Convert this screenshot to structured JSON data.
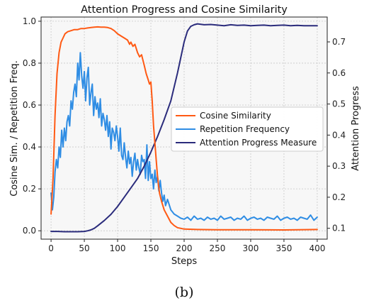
{
  "caption": "(b)",
  "chart_data": {
    "type": "line",
    "title": "Attention Progress and Cosine Similarity",
    "xlabel": "Steps",
    "ylabel_left": "Cosine Sim. / Repetition Freq.",
    "ylabel_right": "Attention Progress",
    "xlim": [
      -15,
      415
    ],
    "ylim_left": [
      -0.04,
      1.02
    ],
    "ylim_right": [
      0.065,
      0.78
    ],
    "xticks": [
      0,
      50,
      100,
      150,
      200,
      250,
      300,
      350,
      400
    ],
    "yticks_left": [
      0.0,
      0.2,
      0.4,
      0.6,
      0.8,
      1.0
    ],
    "yticks_right": [
      0.1,
      0.2,
      0.3,
      0.4,
      0.5,
      0.6,
      0.7
    ],
    "grid": true,
    "legend_position": "center-right",
    "series": [
      {
        "name": "Cosine Similarity",
        "axis": "left",
        "color": "#ff5a14",
        "x": [
          0,
          3,
          6,
          9,
          12,
          15,
          18,
          21,
          25,
          30,
          35,
          40,
          45,
          50,
          55,
          60,
          65,
          70,
          75,
          80,
          85,
          90,
          95,
          100,
          105,
          110,
          115,
          118,
          120,
          123,
          126,
          130,
          133,
          136,
          140,
          143,
          146,
          148,
          150,
          152,
          154,
          156,
          158,
          160,
          163,
          166,
          170,
          175,
          180,
          185,
          190,
          200,
          220,
          250,
          300,
          350,
          400
        ],
        "y": [
          0.08,
          0.25,
          0.55,
          0.75,
          0.85,
          0.9,
          0.92,
          0.94,
          0.95,
          0.955,
          0.96,
          0.96,
          0.965,
          0.965,
          0.968,
          0.97,
          0.972,
          0.973,
          0.972,
          0.972,
          0.97,
          0.965,
          0.955,
          0.94,
          0.93,
          0.92,
          0.91,
          0.89,
          0.9,
          0.88,
          0.89,
          0.85,
          0.83,
          0.84,
          0.79,
          0.75,
          0.72,
          0.7,
          0.71,
          0.62,
          0.5,
          0.42,
          0.34,
          0.26,
          0.18,
          0.14,
          0.1,
          0.07,
          0.04,
          0.025,
          0.015,
          0.008,
          0.006,
          0.005,
          0.005,
          0.004,
          0.006
        ]
      },
      {
        "name": "Repetition Frequency",
        "axis": "left",
        "color": "#2f8de4",
        "x": [
          0,
          2,
          4,
          6,
          8,
          10,
          12,
          14,
          16,
          18,
          20,
          22,
          24,
          26,
          28,
          30,
          32,
          34,
          36,
          38,
          40,
          42,
          44,
          46,
          48,
          50,
          52,
          54,
          56,
          58,
          60,
          62,
          64,
          66,
          68,
          70,
          72,
          74,
          76,
          78,
          80,
          82,
          84,
          86,
          88,
          90,
          92,
          94,
          96,
          98,
          100,
          102,
          104,
          106,
          108,
          110,
          112,
          114,
          116,
          118,
          120,
          122,
          124,
          126,
          128,
          130,
          132,
          134,
          136,
          138,
          140,
          142,
          144,
          146,
          148,
          150,
          152,
          154,
          156,
          158,
          160,
          162,
          164,
          166,
          168,
          170,
          172,
          175,
          180,
          185,
          190,
          195,
          200,
          205,
          210,
          215,
          220,
          225,
          230,
          235,
          240,
          245,
          250,
          255,
          260,
          265,
          270,
          275,
          280,
          285,
          290,
          295,
          300,
          305,
          310,
          315,
          320,
          325,
          330,
          335,
          340,
          345,
          350,
          355,
          360,
          365,
          370,
          375,
          380,
          385,
          390,
          395,
          400
        ],
        "y": [
          0.18,
          0.1,
          0.16,
          0.28,
          0.34,
          0.3,
          0.4,
          0.35,
          0.48,
          0.4,
          0.49,
          0.43,
          0.52,
          0.55,
          0.5,
          0.62,
          0.58,
          0.66,
          0.7,
          0.64,
          0.8,
          0.72,
          0.85,
          0.74,
          0.68,
          0.76,
          0.62,
          0.73,
          0.78,
          0.6,
          0.66,
          0.7,
          0.55,
          0.64,
          0.58,
          0.61,
          0.54,
          0.63,
          0.5,
          0.56,
          0.53,
          0.48,
          0.55,
          0.45,
          0.52,
          0.39,
          0.49,
          0.47,
          0.43,
          0.5,
          0.45,
          0.38,
          0.49,
          0.36,
          0.34,
          0.42,
          0.35,
          0.3,
          0.38,
          0.32,
          0.35,
          0.26,
          0.33,
          0.37,
          0.29,
          0.34,
          0.3,
          0.27,
          0.36,
          0.33,
          0.34,
          0.25,
          0.41,
          0.24,
          0.33,
          0.25,
          0.27,
          0.2,
          0.29,
          0.23,
          0.26,
          0.19,
          0.24,
          0.18,
          0.14,
          0.17,
          0.12,
          0.15,
          0.1,
          0.08,
          0.07,
          0.06,
          0.055,
          0.065,
          0.05,
          0.07,
          0.055,
          0.06,
          0.05,
          0.065,
          0.055,
          0.06,
          0.05,
          0.07,
          0.055,
          0.06,
          0.065,
          0.05,
          0.06,
          0.055,
          0.07,
          0.05,
          0.06,
          0.065,
          0.055,
          0.06,
          0.05,
          0.065,
          0.06,
          0.055,
          0.07,
          0.05,
          0.06,
          0.065,
          0.055,
          0.06,
          0.05,
          0.065,
          0.06,
          0.055,
          0.075,
          0.05,
          0.065
        ]
      },
      {
        "name": "Attention Progress Measure",
        "axis": "right",
        "color": "#2b2c7c",
        "x": [
          0,
          10,
          20,
          30,
          40,
          50,
          55,
          60,
          65,
          70,
          80,
          90,
          100,
          110,
          120,
          130,
          140,
          150,
          160,
          170,
          180,
          190,
          200,
          205,
          210,
          215,
          220,
          230,
          240,
          250,
          260,
          270,
          280,
          290,
          300,
          310,
          320,
          330,
          340,
          350,
          360,
          370,
          380,
          390,
          400
        ],
        "y": [
          0.09,
          0.09,
          0.089,
          0.089,
          0.089,
          0.09,
          0.092,
          0.095,
          0.1,
          0.108,
          0.125,
          0.145,
          0.17,
          0.2,
          0.23,
          0.26,
          0.3,
          0.345,
          0.395,
          0.45,
          0.51,
          0.6,
          0.7,
          0.735,
          0.75,
          0.755,
          0.758,
          0.755,
          0.756,
          0.754,
          0.752,
          0.755,
          0.753,
          0.754,
          0.752,
          0.753,
          0.754,
          0.752,
          0.753,
          0.754,
          0.752,
          0.753,
          0.752,
          0.752,
          0.752
        ]
      }
    ]
  }
}
